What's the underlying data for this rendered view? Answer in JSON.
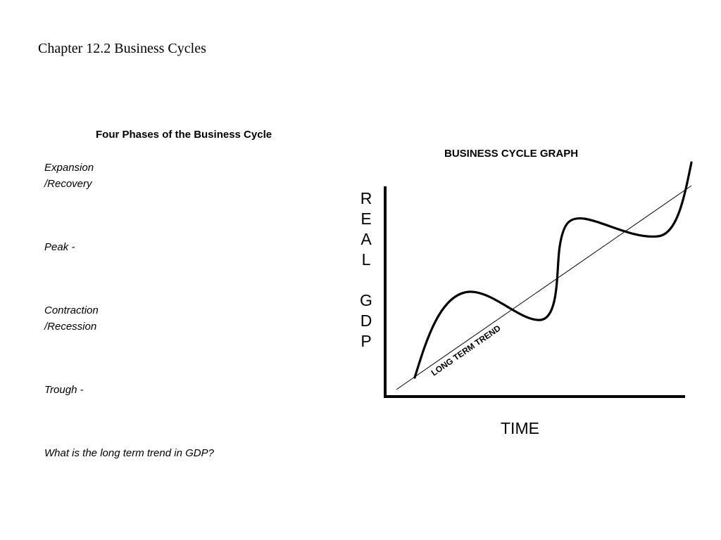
{
  "page": {
    "title": "Chapter 12.2 Business Cycles"
  },
  "phases": {
    "heading": "Four Phases of the Business Cycle",
    "items": [
      {
        "line1": "Expansion",
        "line2": "/Recovery"
      },
      {
        "line1": "Peak -",
        "line2": ""
      },
      {
        "line1": "Contraction",
        "line2": "/Recession"
      },
      {
        "line1": "Trough -",
        "line2": ""
      }
    ],
    "question": "What is the long term trend in GDP?"
  },
  "graph": {
    "title": "BUSINESS CYCLE GRAPH",
    "y_axis_letters": [
      "R",
      "E",
      "A",
      "L",
      "",
      "G",
      "D",
      "P"
    ],
    "x_axis_label": "TIME",
    "trend_label": "LONG TERM TREND",
    "line_color": "#000000"
  }
}
